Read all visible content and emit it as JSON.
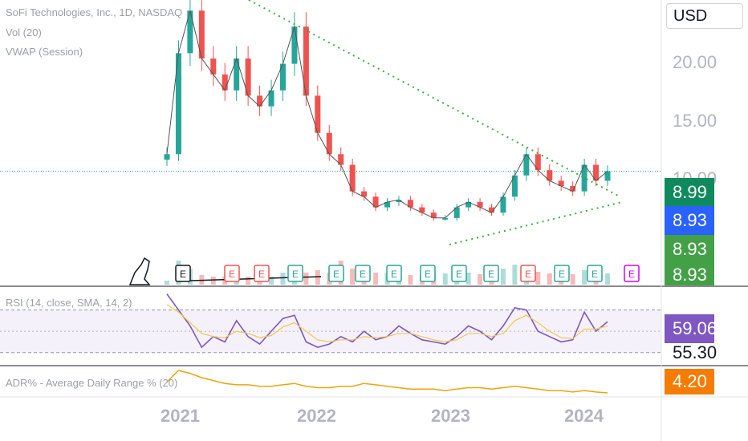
{
  "legend": {
    "symbol": "SoFi Technologies, Inc., 1D, NASDAQ",
    "volume": "Vol (20)",
    "vwap": "VWAP (Session)",
    "rsi": "RSI (14, close, SMA, 14, 2)",
    "adr": "ADR% - Average Daily Range % (20)"
  },
  "currency": "USD",
  "price_axis_ticks": [
    "20.00",
    "15.00",
    "10.00"
  ],
  "price_badges": [
    {
      "label": "8.99",
      "color": "#0f8a5f"
    },
    {
      "label": "8.93",
      "color": "#2962ff"
    },
    {
      "label": "8.93",
      "color": "#43a047"
    },
    {
      "label": "8.93",
      "color": "#43a047"
    }
  ],
  "rsi_badges": [
    {
      "label": "59.06",
      "color": "#7e57c2"
    },
    {
      "label": "55.30",
      "color": ""
    }
  ],
  "adr_badge": {
    "label": "4.20",
    "color": "#f57c00"
  },
  "x_axis_years": [
    "2021",
    "2022",
    "2023",
    "2024"
  ],
  "earnings_markers": [
    "E",
    "E",
    "E",
    "E",
    "E",
    "E",
    "E",
    "E",
    "E",
    "E",
    "E",
    "E",
    "E",
    "E"
  ],
  "colors": {
    "up": "#26a69a",
    "down": "#ef5350",
    "trendline": "#3dae3d",
    "rsi": "#7e57c2",
    "rsi_sma": "#f2c94c",
    "adr": "#f0a30a"
  },
  "chart_data": [
    {
      "type": "line",
      "title": "SoFi Technologies, Inc., 1D, NASDAQ",
      "x": [
        "2020-12",
        "2021-01",
        "2021-02",
        "2021-03",
        "2021-04",
        "2021-05",
        "2021-06",
        "2021-07",
        "2021-08",
        "2021-09",
        "2021-10",
        "2021-11",
        "2021-12",
        "2022-01",
        "2022-02",
        "2022-03",
        "2022-04",
        "2022-05",
        "2022-06",
        "2022-07",
        "2022-08",
        "2022-09",
        "2022-10",
        "2022-11",
        "2022-12",
        "2023-01",
        "2023-02",
        "2023-03",
        "2023-04",
        "2023-05",
        "2023-06",
        "2023-07",
        "2023-08",
        "2023-09",
        "2023-10",
        "2023-11",
        "2023-12",
        "2024-01",
        "2024-02"
      ],
      "series": [
        {
          "values": [
            10.5,
            20.0,
            24.0,
            19.5,
            18.0,
            16.5,
            19.5,
            16.0,
            15.0,
            16.5,
            19.0,
            22.5,
            16.0,
            12.5,
            10.5,
            9.5,
            7.0,
            6.5,
            5.5,
            6.0,
            6.2,
            5.5,
            5.0,
            4.5,
            4.5,
            5.5,
            6.0,
            5.5,
            5.0,
            6.5,
            8.5,
            10.5,
            9.0,
            8.0,
            7.5,
            7.0,
            9.5,
            8.0,
            8.9
          ]
        }
      ],
      "ylim": [
        2.0,
        25.0
      ]
    },
    {
      "type": "line",
      "title": "RSI (14, close, SMA, 14, 2)",
      "series": [
        {
          "values": [
            85,
            70,
            55,
            35,
            45,
            40,
            60,
            45,
            38,
            50,
            62,
            65,
            40,
            35,
            38,
            45,
            40,
            50,
            42,
            45,
            55,
            48,
            42,
            40,
            38,
            45,
            55,
            50,
            42,
            55,
            72,
            70,
            50,
            45,
            40,
            42,
            68,
            50,
            59
          ]
        },
        {
          "values": [
            75,
            68,
            58,
            48,
            45,
            44,
            50,
            48,
            44,
            46,
            54,
            58,
            50,
            42,
            40,
            42,
            42,
            45,
            44,
            45,
            48,
            48,
            45,
            42,
            40,
            42,
            48,
            48,
            45,
            48,
            60,
            65,
            58,
            50,
            44,
            43,
            52,
            52,
            55
          ]
        }
      ],
      "ylim": [
        20,
        90
      ]
    },
    {
      "type": "line",
      "title": "ADR% - Average Daily Range % (20)",
      "series": [
        {
          "values": [
            8.0,
            12.0,
            11.0,
            9.5,
            8.5,
            7.5,
            7.0,
            7.0,
            6.5,
            6.5,
            7.0,
            7.5,
            6.5,
            6.0,
            6.0,
            6.5,
            6.5,
            7.5,
            7.0,
            6.5,
            6.0,
            5.5,
            5.5,
            5.5,
            5.0,
            5.5,
            6.0,
            6.0,
            5.5,
            6.0,
            6.5,
            6.0,
            5.5,
            5.0,
            5.0,
            4.5,
            5.0,
            4.5,
            4.2
          ]
        }
      ]
    }
  ]
}
